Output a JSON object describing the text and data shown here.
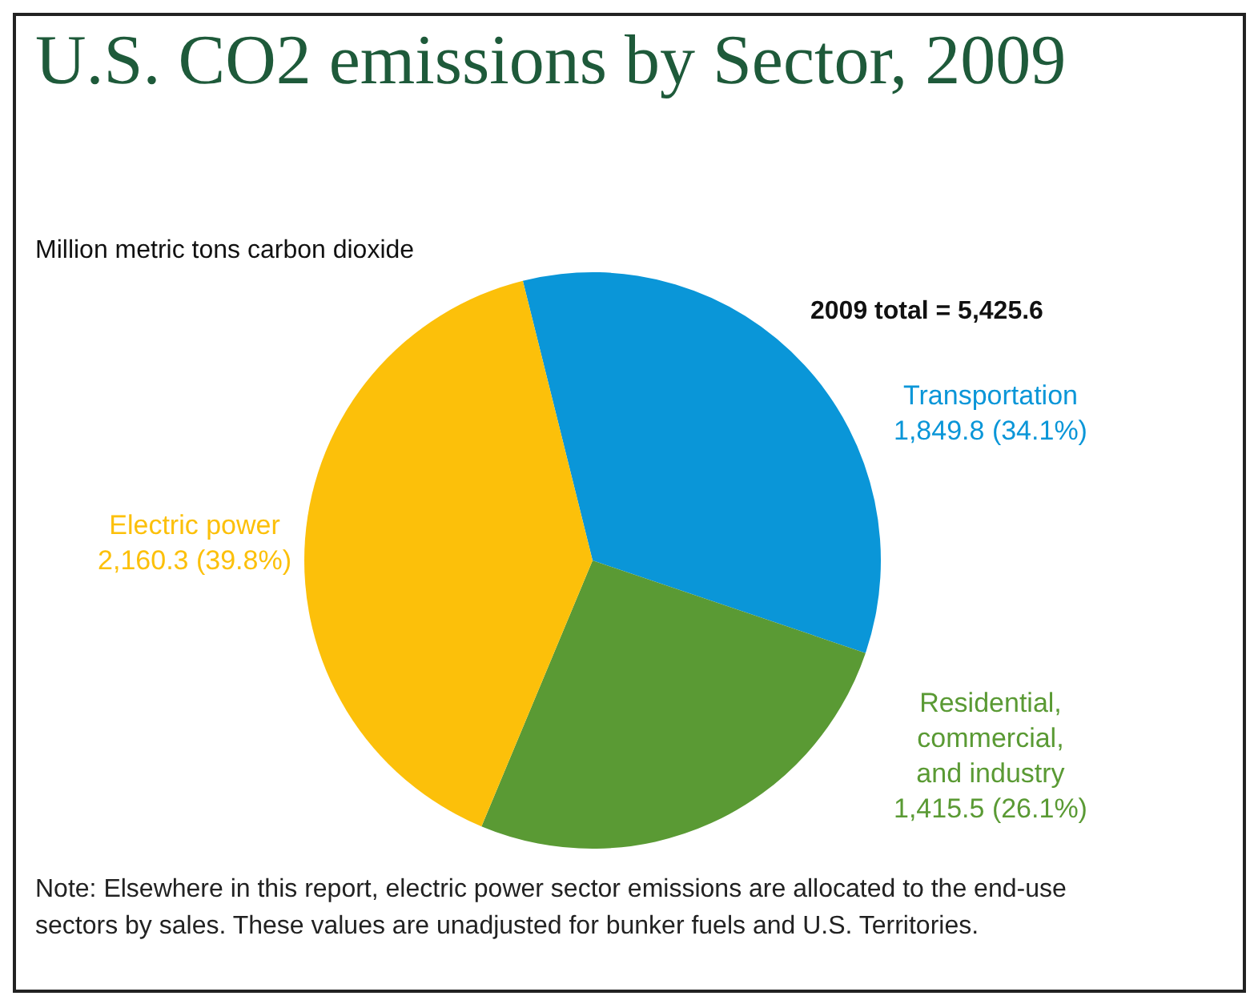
{
  "chart_data": {
    "type": "pie",
    "title": "U.S. CO2 emissions by Sector, 2009",
    "subtitle": "Million metric tons carbon dioxide",
    "categories": [
      "Transportation",
      "Residential, commercial, and industry",
      "Electric power"
    ],
    "values": [
      1849.8,
      1415.5,
      2160.3
    ],
    "colors": [
      "#0a96d8",
      "#5a9a34",
      "#fcc00a"
    ],
    "value_labels": [
      "1,849.8 (34.1%)",
      "1,415.5 (26.1%)",
      "2,160.3 (39.8%)"
    ],
    "annotations": [
      "2009 total = 5,425.6",
      "Note: Elsewhere in this report, electric power sector emissions are allocated to the end-use sectors by sales. These values are unadjusted for bunker fuels and U.S. Territories."
    ],
    "legend": false
  }
}
